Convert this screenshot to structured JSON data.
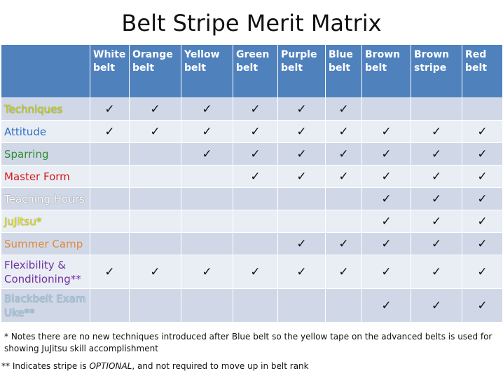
{
  "title": "Belt Stripe Merit Matrix",
  "colors": {
    "header_bg": "#4f81bd",
    "row_odd_bg": "#d0d8e8",
    "row_even_bg": "#e9edf4"
  },
  "columns": [
    {
      "line1": "White",
      "line2": "belt"
    },
    {
      "line1": "Orange",
      "line2": "belt"
    },
    {
      "line1": "Yellow",
      "line2": "belt"
    },
    {
      "line1": "Green",
      "line2": "belt"
    },
    {
      "line1": "Purple",
      "line2": "belt"
    },
    {
      "line1": "Blue",
      "line2": "belt"
    },
    {
      "line1": "Brown",
      "line2": "belt"
    },
    {
      "line1": "Brown",
      "line2": "stripe"
    },
    {
      "line1": "Red",
      "line2": "belt"
    }
  ],
  "check_symbol": "✓",
  "rows": [
    {
      "line1": "Techniques",
      "line2": "",
      "color": "#c8d400",
      "checks": [
        true,
        true,
        true,
        true,
        true,
        true,
        false,
        false,
        false
      ]
    },
    {
      "line1": "Attitude",
      "line2": "",
      "color": "#2e6fc4",
      "checks": [
        true,
        true,
        true,
        true,
        true,
        true,
        true,
        true,
        true
      ]
    },
    {
      "line1": "Sparring",
      "line2": "",
      "color": "#2f8c2f",
      "checks": [
        false,
        false,
        true,
        true,
        true,
        true,
        true,
        true,
        true
      ]
    },
    {
      "line1": "Master Form",
      "line2": "",
      "color": "#d21c1c",
      "checks": [
        false,
        false,
        false,
        true,
        true,
        true,
        true,
        true,
        true
      ]
    },
    {
      "line1": "Teaching Hours",
      "line2": "",
      "color": "#ffffff",
      "checks": [
        false,
        false,
        false,
        false,
        false,
        false,
        true,
        true,
        true
      ]
    },
    {
      "line1": "JuJitsu*",
      "line2": "",
      "color": "#e6e600",
      "checks": [
        false,
        false,
        false,
        false,
        false,
        false,
        true,
        true,
        true
      ]
    },
    {
      "line1": "Summer Camp",
      "line2": "",
      "color": "#e08a3c",
      "checks": [
        false,
        false,
        false,
        false,
        true,
        true,
        true,
        true,
        true
      ]
    },
    {
      "line1": "Flexibility &",
      "line2": "Conditioning**",
      "color": "#7030a0",
      "checks": [
        true,
        true,
        true,
        true,
        true,
        true,
        true,
        true,
        true
      ]
    },
    {
      "line1": "Blackbelt Exam",
      "line2": "Uke**",
      "color": "#a8d4ee",
      "checks": [
        false,
        false,
        false,
        false,
        false,
        false,
        true,
        true,
        true
      ]
    }
  ],
  "notes": {
    "note1": "* Notes there are no new techniques introduced after Blue belt so the yellow tape on the advanced belts is used for showing JuJitsu skill accomplishment",
    "note2_prefix": "** Indicates stripe is ",
    "note2_emphasis": "OPTIONAL",
    "note2_suffix": ", and not required to move up in belt rank"
  }
}
